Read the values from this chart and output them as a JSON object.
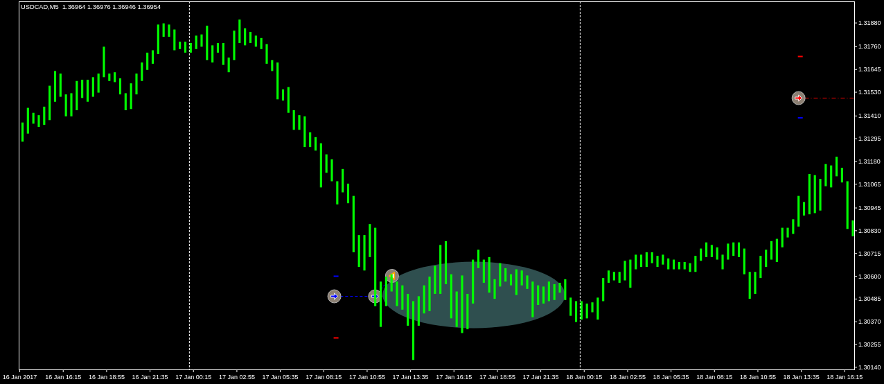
{
  "chart_data": {
    "type": "bar",
    "title": "USDCAD,M5  1.36964 1.36976 1.36946 1.36954",
    "color": "#00ff00",
    "x": [
      "2017-01-16T13:45",
      "2017-01-16T14:05",
      "2017-01-16T14:25",
      "2017-01-16T14:45",
      "2017-01-16T15:05",
      "2017-01-16T15:25",
      "2017-01-16T15:45",
      "2017-01-16T16:05",
      "2017-01-16T16:25",
      "2017-01-16T16:45",
      "2017-01-16T17:05",
      "2017-01-16T17:25",
      "2017-01-16T17:45",
      "2017-01-16T18:05",
      "2017-01-16T18:25",
      "2017-01-16T18:45",
      "2017-01-16T19:05",
      "2017-01-16T19:25",
      "2017-01-16T19:45",
      "2017-01-16T20:05",
      "2017-01-16T20:25",
      "2017-01-16T20:45",
      "2017-01-16T21:05",
      "2017-01-16T21:25",
      "2017-01-16T21:45",
      "2017-01-16T22:05",
      "2017-01-16T22:25",
      "2017-01-16T22:45",
      "2017-01-16T23:05",
      "2017-01-16T23:25",
      "2017-01-16T23:45",
      "2017-01-17T00:05",
      "2017-01-17T00:25",
      "2017-01-17T00:45",
      "2017-01-17T01:05",
      "2017-01-17T01:25",
      "2017-01-17T01:45",
      "2017-01-17T02:05",
      "2017-01-17T02:25",
      "2017-01-17T02:45",
      "2017-01-17T03:05",
      "2017-01-17T03:25",
      "2017-01-17T03:45",
      "2017-01-17T04:05",
      "2017-01-17T04:25",
      "2017-01-17T04:45",
      "2017-01-17T05:05",
      "2017-01-17T05:25",
      "2017-01-17T05:45",
      "2017-01-17T06:05",
      "2017-01-17T06:25",
      "2017-01-17T06:45",
      "2017-01-17T07:05",
      "2017-01-17T07:25",
      "2017-01-17T07:45",
      "2017-01-17T08:05",
      "2017-01-17T08:25",
      "2017-01-17T08:45",
      "2017-01-17T09:05",
      "2017-01-17T09:25",
      "2017-01-17T09:45",
      "2017-01-17T10:05",
      "2017-01-17T10:25",
      "2017-01-17T10:45",
      "2017-01-17T11:05",
      "2017-01-17T11:25",
      "2017-01-17T11:45",
      "2017-01-17T12:05",
      "2017-01-17T12:25",
      "2017-01-17T12:45",
      "2017-01-17T13:05",
      "2017-01-17T13:25",
      "2017-01-17T13:45",
      "2017-01-17T14:05",
      "2017-01-17T14:25",
      "2017-01-17T14:45",
      "2017-01-17T15:05",
      "2017-01-17T15:25",
      "2017-01-17T15:45",
      "2017-01-17T16:05",
      "2017-01-17T16:25",
      "2017-01-17T16:45",
      "2017-01-17T17:05",
      "2017-01-17T17:25",
      "2017-01-17T17:45",
      "2017-01-17T18:05",
      "2017-01-17T18:25",
      "2017-01-17T18:45",
      "2017-01-17T19:05",
      "2017-01-17T19:25",
      "2017-01-17T19:45",
      "2017-01-17T20:05",
      "2017-01-17T20:25",
      "2017-01-17T20:45",
      "2017-01-17T21:05",
      "2017-01-17T21:25",
      "2017-01-17T21:45",
      "2017-01-17T22:05",
      "2017-01-17T22:25",
      "2017-01-17T22:45",
      "2017-01-17T23:05",
      "2017-01-17T23:25",
      "2017-01-17T23:45",
      "2017-01-18T00:05",
      "2017-01-18T00:25",
      "2017-01-18T00:45",
      "2017-01-18T01:05",
      "2017-01-18T01:25",
      "2017-01-18T01:45",
      "2017-01-18T02:05",
      "2017-01-18T02:25",
      "2017-01-18T02:45",
      "2017-01-18T03:05",
      "2017-01-18T03:25",
      "2017-01-18T03:45",
      "2017-01-18T04:05",
      "2017-01-18T04:25",
      "2017-01-18T04:45",
      "2017-01-18T05:05",
      "2017-01-18T05:25",
      "2017-01-18T05:45",
      "2017-01-18T06:05",
      "2017-01-18T06:25",
      "2017-01-18T06:45",
      "2017-01-18T07:05",
      "2017-01-18T07:25",
      "2017-01-18T07:45",
      "2017-01-18T08:05",
      "2017-01-18T08:25",
      "2017-01-18T08:45",
      "2017-01-18T09:05",
      "2017-01-18T09:25",
      "2017-01-18T09:45",
      "2017-01-18T10:05",
      "2017-01-18T10:25",
      "2017-01-18T10:45",
      "2017-01-18T11:05",
      "2017-01-18T11:25",
      "2017-01-18T11:45",
      "2017-01-18T12:05",
      "2017-01-18T12:25",
      "2017-01-18T12:45",
      "2017-01-18T13:05",
      "2017-01-18T13:25",
      "2017-01-18T13:45",
      "2017-01-18T14:05",
      "2017-01-18T14:25",
      "2017-01-18T14:45",
      "2017-01-18T15:05",
      "2017-01-18T15:25",
      "2017-01-18T15:45",
      "2017-01-18T16:05",
      "2017-01-18T16:25",
      "2017-01-18T16:45"
    ],
    "base": [
      1.3128,
      1.31321,
      1.31371,
      1.31355,
      1.31365,
      1.31389,
      1.31482,
      1.31507,
      1.31408,
      1.31408,
      1.31439,
      1.31501,
      1.31482,
      1.31507,
      1.31528,
      1.31606,
      1.31587,
      1.31581,
      1.31519,
      1.31439,
      1.31445,
      1.31519,
      1.31587,
      1.31643,
      1.31674,
      1.31723,
      1.3181,
      1.3181,
      1.31742,
      1.31748,
      1.3173,
      1.3173,
      1.31748,
      1.3176,
      1.31692,
      1.3168,
      1.3173,
      1.31668,
      1.31631,
      1.31692,
      1.31779,
      1.31767,
      1.31779,
      1.3176,
      1.31748,
      1.31674,
      1.31637,
      1.31494,
      1.31488,
      1.31426,
      1.3134,
      1.3134,
      1.31253,
      1.31253,
      1.31235,
      1.31049,
      1.31123,
      1.3108,
      1.30963,
      1.31024,
      1.30969,
      1.30721,
      1.30647,
      1.30629,
      1.30697,
      1.30449,
      1.30344,
      1.30449,
      1.30523,
      1.30449,
      1.30431,
      1.3035,
      1.30177,
      1.3035,
      1.30412,
      1.30424,
      1.30511,
      1.30511,
      1.3056,
      1.30387,
      1.30344,
      1.30313,
      1.30332,
      1.30462,
      1.30641,
      1.30567,
      1.30517,
      1.30486,
      1.30548,
      1.30573,
      1.30554,
      1.30505,
      1.30554,
      1.30536,
      1.30393,
      1.30455,
      1.30462,
      1.30474,
      1.3048,
      1.30517,
      1.3048,
      1.304,
      1.30369,
      1.30381,
      1.30387,
      1.30418,
      1.30381,
      1.30474,
      1.30567,
      1.30579,
      1.30567,
      1.30579,
      1.30542,
      1.30635,
      1.30647,
      1.30647,
      1.30666,
      1.30647,
      1.30659,
      1.30635,
      1.30635,
      1.30635,
      1.30635,
      1.30622,
      1.30622,
      1.30678,
      1.30697,
      1.30697,
      1.30684,
      1.30635,
      1.30684,
      1.30703,
      1.30697,
      1.3061,
      1.30486,
      1.30511,
      1.30591,
      1.30647,
      1.30684,
      1.30672,
      1.30746,
      1.30796,
      1.30814,
      1.30851,
      1.30907,
      1.30913,
      1.30919,
      1.30932,
      1.31055,
      1.31049,
      1.31105,
      1.31074,
      1.30839,
      1.30802
    ],
    "values": [
      0.00097,
      0.0013,
      0.00055,
      0.00059,
      0.00092,
      0.00174,
      0.00155,
      0.00117,
      0.00111,
      0.00117,
      0.00148,
      0.00092,
      0.00111,
      0.00099,
      0.00096,
      0.00154,
      0.00037,
      0.0005,
      0.00081,
      0.00086,
      0.0013,
      0.00105,
      0.00093,
      0.00087,
      0.00068,
      0.00149,
      0.00068,
      0.00062,
      0.00105,
      0.00037,
      0.00055,
      0.00049,
      0.00068,
      0.00062,
      0.00174,
      0.00087,
      0.00049,
      0.00111,
      0.00074,
      0.00149,
      0.00118,
      0.00086,
      0.00056,
      0.00056,
      0.00056,
      0.00099,
      0.00055,
      0.00186,
      0.00056,
      0.0013,
      0.00099,
      0.00074,
      0.00155,
      0.00074,
      0.00068,
      0.00223,
      0.00093,
      0.00111,
      0.00117,
      0.00118,
      0.00099,
      0.00285,
      0.00161,
      0.00179,
      0.00167,
      0.00396,
      0.00229,
      0.00149,
      0.00087,
      0.00124,
      0.00123,
      0.00161,
      0.00297,
      0.00149,
      0.00142,
      0.00174,
      0.00142,
      0.00247,
      0.00217,
      0.00223,
      0.00179,
      0.00291,
      0.00179,
      0.00222,
      0.00093,
      0.00117,
      0.0018,
      0.00099,
      0.00118,
      0.00068,
      0.00056,
      0.0013,
      0.00075,
      0.00068,
      0.0018,
      0.00099,
      0.00086,
      0.00099,
      0.0008,
      0.0005,
      0.00105,
      0.00092,
      0.00105,
      0.00093,
      0.00075,
      0.0005,
      0.00111,
      0.00117,
      0.00062,
      0.00043,
      0.00055,
      0.00099,
      0.00142,
      0.00074,
      0.00062,
      0.00074,
      0.00055,
      0.00056,
      0.0005,
      0.00055,
      0.00049,
      0.00037,
      0.00037,
      0.00044,
      0.00081,
      0.00062,
      0.00074,
      0.00061,
      0.00062,
      0.00074,
      0.00081,
      0.00068,
      0.00074,
      0.0013,
      0.00136,
      0.00111,
      0.00112,
      0.00087,
      0.00093,
      0.00117,
      0.00099,
      0.00049,
      0.00074,
      0.00155,
      0.00068,
      0.00204,
      0.00192,
      0.0016,
      0.00112,
      0.00111,
      0.00099,
      0.00074,
      0.00241,
      0.0008
    ],
    "xlim": [
      "2017-01-16T13:31",
      "2017-01-18T16:50"
    ],
    "xticks": [
      {
        "value": "2017-01-16T13:35",
        "label": "16 Jan 2017"
      },
      {
        "value": "2017-01-16T16:15",
        "label": "16 Jan 16:15"
      },
      {
        "value": "2017-01-16T18:55",
        "label": "16 Jan 18:55"
      },
      {
        "value": "2017-01-16T21:35",
        "label": "16 Jan 21:35"
      },
      {
        "value": "2017-01-17T00:15",
        "label": "17 Jan 00:15"
      },
      {
        "value": "2017-01-17T02:55",
        "label": "17 Jan 02:55"
      },
      {
        "value": "2017-01-17T05:35",
        "label": "17 Jan 05:35"
      },
      {
        "value": "2017-01-17T08:15",
        "label": "17 Jan 08:15"
      },
      {
        "value": "2017-01-17T10:55",
        "label": "17 Jan 10:55"
      },
      {
        "value": "2017-01-17T13:35",
        "label": "17 Jan 13:35"
      },
      {
        "value": "2017-01-17T16:15",
        "label": "17 Jan 16:15"
      },
      {
        "value": "2017-01-17T18:55",
        "label": "17 Jan 18:55"
      },
      {
        "value": "2017-01-17T21:35",
        "label": "17 Jan 21:35"
      },
      {
        "value": "2017-01-18T00:15",
        "label": "18 Jan 00:15"
      },
      {
        "value": "2017-01-18T02:55",
        "label": "18 Jan 02:55"
      },
      {
        "value": "2017-01-18T05:35",
        "label": "18 Jan 05:35"
      },
      {
        "value": "2017-01-18T08:15",
        "label": "18 Jan 08:15"
      },
      {
        "value": "2017-01-18T10:55",
        "label": "18 Jan 10:55"
      },
      {
        "value": "2017-01-18T13:35",
        "label": "18 Jan 13:35"
      },
      {
        "value": "2017-01-18T16:15",
        "label": "18 Jan 16:15"
      }
    ],
    "ylim": [
      1.30129,
      1.31989
    ],
    "yticks": [
      {
        "value": 1.3188,
        "label": "1.31880"
      },
      {
        "value": 1.3176,
        "label": "1.31760"
      },
      1.31645,
      {
        "value": 1.3153,
        "label": "1.31530"
      },
      {
        "value": 1.3141,
        "label": "1.31410"
      },
      1.31295,
      {
        "value": 1.3118,
        "label": "1.31180"
      },
      1.31065,
      1.30945,
      {
        "value": 1.3083,
        "label": "1.30830"
      },
      1.30715,
      {
        "value": 1.306,
        "label": "1.30600"
      },
      1.30485,
      {
        "value": 1.3037,
        "label": "1.30370"
      },
      1.30255,
      {
        "value": 1.3014,
        "label": "1.30140"
      }
    ],
    "ref_lines": [
      {
        "axis": "x",
        "value": "2017-01-17T00:00",
        "color": "#ffffff",
        "line_style": "dashed"
      },
      {
        "axis": "x",
        "value": "2017-01-18T00:00",
        "color": "#ffffff",
        "line_style": "dashed"
      }
    ]
  }
}
